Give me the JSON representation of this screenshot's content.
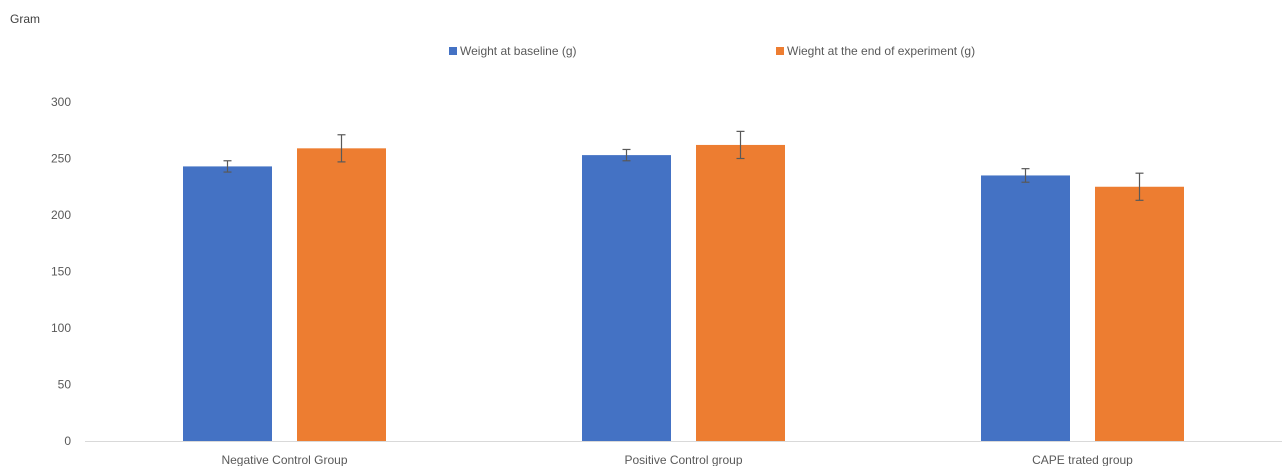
{
  "chart_data": {
    "type": "bar",
    "ylabel": "Gram",
    "xlabel": "",
    "ylim": [
      0,
      300
    ],
    "yticks": [
      0,
      50,
      100,
      150,
      200,
      250,
      300
    ],
    "grid": false,
    "legend_position": "top",
    "categories": [
      "Negative Control Group",
      "Positive Control group",
      "CAPE trated group"
    ],
    "series": [
      {
        "name": "Weight at baseline (g)",
        "color": "#4472C4",
        "values": [
          243,
          253,
          235
        ],
        "error": [
          5,
          5,
          6
        ]
      },
      {
        "name": "Wieght at the end of experiment (g)",
        "color": "#ED7D31",
        "values": [
          259,
          262,
          225
        ],
        "error": [
          12,
          12,
          12
        ]
      }
    ]
  }
}
